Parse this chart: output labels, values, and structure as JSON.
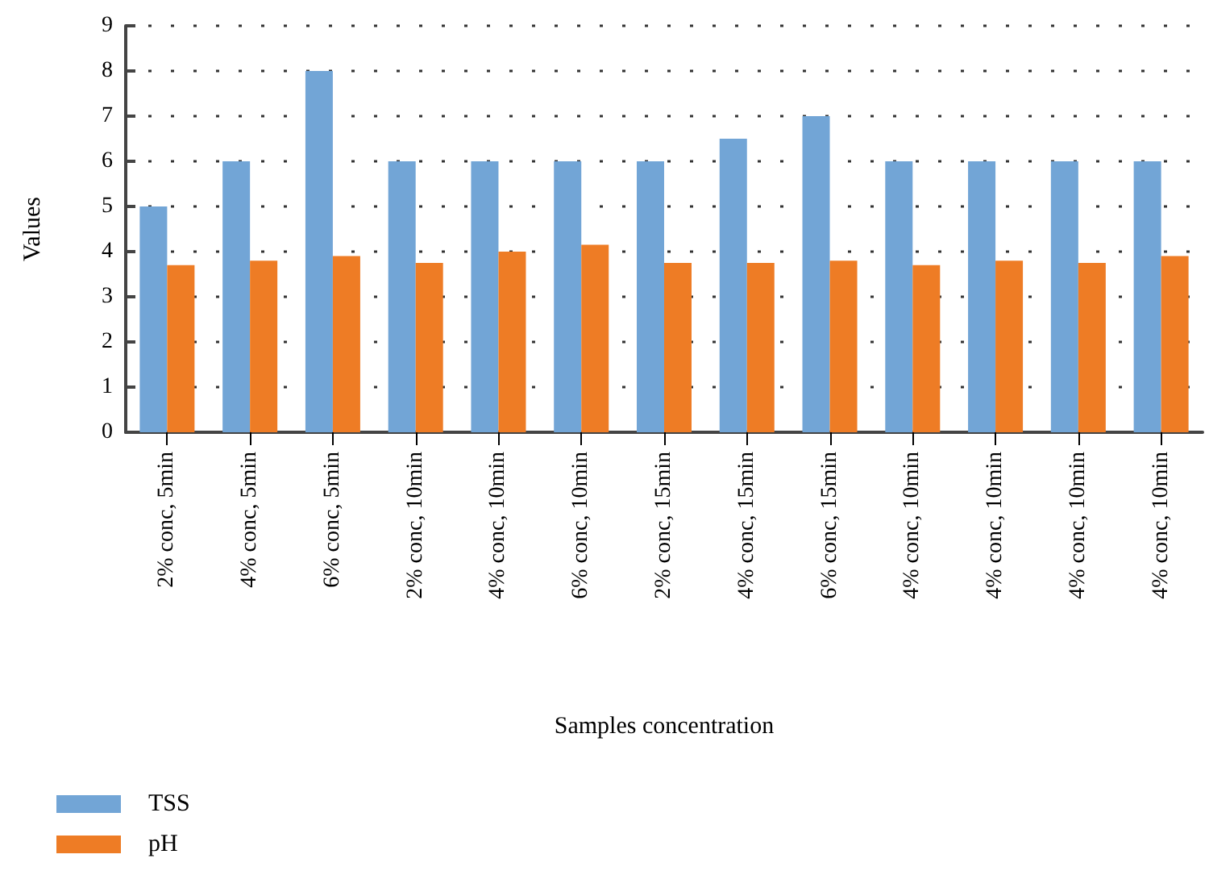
{
  "chart_data": {
    "type": "bar",
    "xlabel": "Samples concentration",
    "ylabel": "Values",
    "categories": [
      "2% conc, 5min",
      "4% conc, 5min",
      "6% conc, 5min",
      "2% conc, 10min",
      "4% conc, 10min",
      "6% conc, 10min",
      "2% conc, 15min",
      "4% conc, 15min",
      "6% conc, 15min",
      "4% conc, 10min",
      "4% conc, 10min",
      "4% conc, 10min",
      "4% conc, 10min"
    ],
    "series": [
      {
        "name": "TSS",
        "color": "#72a5d6",
        "values": [
          5,
          6,
          8,
          6,
          6,
          6,
          6,
          6.5,
          7,
          6,
          6,
          6,
          6
        ]
      },
      {
        "name": "pH",
        "color": "#ee7c25",
        "values": [
          3.7,
          3.8,
          3.9,
          3.75,
          4.0,
          4.15,
          3.75,
          3.75,
          3.8,
          3.7,
          3.8,
          3.75,
          3.9
        ]
      }
    ],
    "ylim": [
      0,
      9
    ],
    "yticks": [
      0,
      1,
      2,
      3,
      4,
      5,
      6,
      7,
      8,
      9
    ],
    "grid": "y",
    "legend": "bottom left"
  }
}
